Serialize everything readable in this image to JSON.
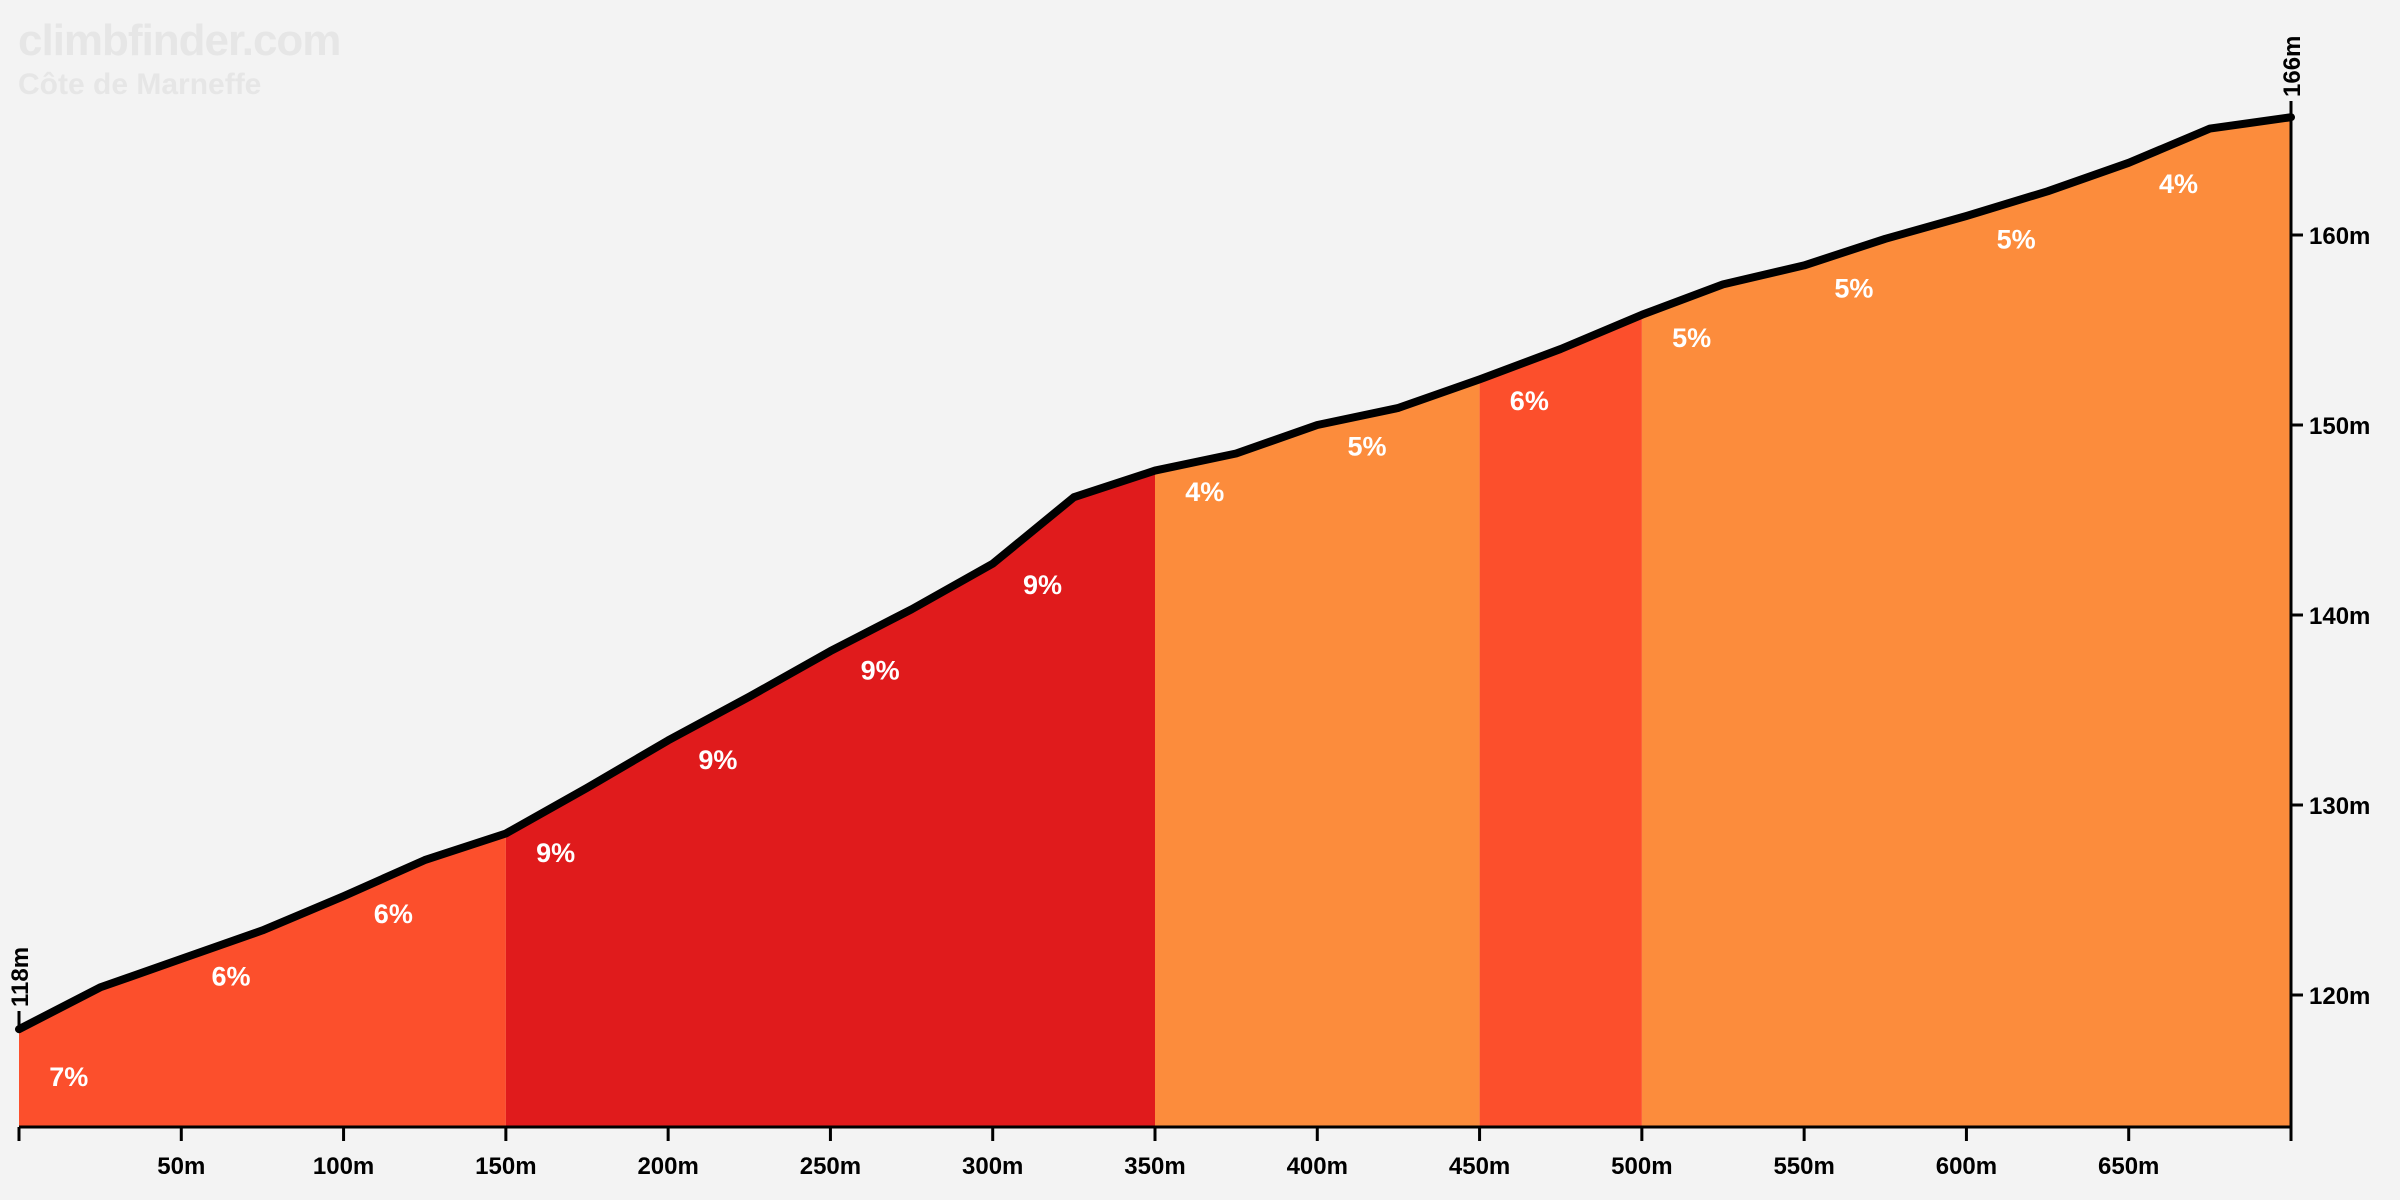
{
  "watermark": {
    "site": "climbfinder.com",
    "climb_name": "Côte de Marneffe"
  },
  "colors": {
    "background": "#f3f3f3",
    "line": "#000000",
    "grade_4_5": "#fc8c3c",
    "grade_6_7": "#fc4f2c",
    "grade_8_9": "#e01b1c"
  },
  "chart_data": {
    "type": "area",
    "title": "Côte de Marneffe",
    "xlabel": "",
    "ylabel": "",
    "xlim": [
      0,
      700
    ],
    "ylim": [
      113,
      166
    ],
    "grid": false,
    "x_ticks": [
      {
        "value": 50,
        "label": "50m"
      },
      {
        "value": 100,
        "label": "100m"
      },
      {
        "value": 150,
        "label": "150m"
      },
      {
        "value": 200,
        "label": "200m"
      },
      {
        "value": 250,
        "label": "250m"
      },
      {
        "value": 300,
        "label": "300m"
      },
      {
        "value": 350,
        "label": "350m"
      },
      {
        "value": 400,
        "label": "400m"
      },
      {
        "value": 450,
        "label": "450m"
      },
      {
        "value": 500,
        "label": "500m"
      },
      {
        "value": 550,
        "label": "550m"
      },
      {
        "value": 600,
        "label": "600m"
      },
      {
        "value": 650,
        "label": "650m"
      }
    ],
    "y_ticks": [
      {
        "value": 120,
        "label": "120m"
      },
      {
        "value": 130,
        "label": "130m"
      },
      {
        "value": 140,
        "label": "140m"
      },
      {
        "value": 150,
        "label": "150m"
      },
      {
        "value": 160,
        "label": "160m"
      }
    ],
    "start_elevation": {
      "value": 118,
      "label": "118m"
    },
    "end_elevation": {
      "value": 166,
      "label": "166m"
    },
    "profile": {
      "x": [
        0,
        25,
        50,
        75,
        100,
        125,
        150,
        175,
        200,
        225,
        250,
        275,
        300,
        325,
        350,
        375,
        400,
        425,
        450,
        475,
        500,
        525,
        550,
        575,
        600,
        625,
        650,
        675,
        700
      ],
      "elevation": [
        118.2,
        120.4,
        121.9,
        123.4,
        125.2,
        127.1,
        128.5,
        130.9,
        133.4,
        135.7,
        138.1,
        140.3,
        142.7,
        146.2,
        147.6,
        148.5,
        150.0,
        150.9,
        152.4,
        154.0,
        155.8,
        157.4,
        158.4,
        159.8,
        161.0,
        162.3,
        163.8,
        165.6,
        166.2
      ]
    },
    "segments": [
      {
        "x0": 0,
        "x1": 150,
        "level": "grade_6_7"
      },
      {
        "x0": 150,
        "x1": 350,
        "level": "grade_8_9"
      },
      {
        "x0": 350,
        "x1": 450,
        "level": "grade_4_5"
      },
      {
        "x0": 450,
        "x1": 500,
        "level": "grade_6_7"
      },
      {
        "x0": 500,
        "x1": 700,
        "level": "grade_4_5"
      }
    ],
    "grade_labels": [
      {
        "x": 5,
        "elev": 115.2,
        "label": "7%"
      },
      {
        "x": 55,
        "elev": 120.5,
        "label": "6%"
      },
      {
        "x": 105,
        "elev": 123.8,
        "label": "6%"
      },
      {
        "x": 155,
        "elev": 127.0,
        "label": "9%"
      },
      {
        "x": 205,
        "elev": 131.9,
        "label": "9%"
      },
      {
        "x": 255,
        "elev": 136.6,
        "label": "9%"
      },
      {
        "x": 305,
        "elev": 141.1,
        "label": "9%"
      },
      {
        "x": 355,
        "elev": 146.0,
        "label": "4%"
      },
      {
        "x": 405,
        "elev": 148.4,
        "label": "5%"
      },
      {
        "x": 455,
        "elev": 150.8,
        "label": "6%"
      },
      {
        "x": 505,
        "elev": 154.1,
        "label": "5%"
      },
      {
        "x": 555,
        "elev": 156.7,
        "label": "5%"
      },
      {
        "x": 605,
        "elev": 159.3,
        "label": "5%"
      },
      {
        "x": 655,
        "elev": 162.2,
        "label": "4%"
      }
    ]
  }
}
